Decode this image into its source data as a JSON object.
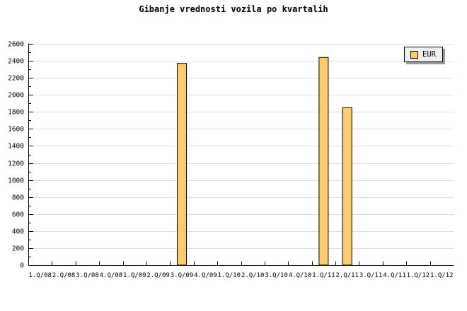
{
  "title": "Gibanje vrednosti vozila po kvartalih",
  "legend": {
    "label": "EUR"
  },
  "colors": {
    "background": "#FFFFFF",
    "bar_fill": "#FFCC66",
    "bar_border": "#000000",
    "grid": "#DDDDDD",
    "axis": "#000000",
    "text": "#000000",
    "legend_bg": "#EFEFEF",
    "legend_shadow": "#999999"
  },
  "chart_data": {
    "type": "bar",
    "title": "Gibanje vrednosti vozila po kvartalih",
    "xlabel": "",
    "ylabel": "",
    "categories": [
      "1.Q/08",
      "2.Q/08",
      "3.Q/08",
      "4.Q/08",
      "1.Q/09",
      "2.Q/09",
      "3.Q/09",
      "4.Q/09",
      "1.Q/10",
      "2.Q/10",
      "3.Q/10",
      "4.Q/10",
      "1.Q/11",
      "2.Q/11",
      "3.Q/11",
      "4.Q/11",
      "1.Q/12",
      "1.Q/12"
    ],
    "series": [
      {
        "name": "EUR",
        "values": [
          null,
          null,
          null,
          null,
          null,
          null,
          2370,
          null,
          null,
          null,
          null,
          null,
          2440,
          1850,
          null,
          null,
          null,
          null
        ]
      }
    ],
    "ylim": [
      0,
      2600
    ],
    "ytick_step": 200,
    "ytick_minor_step": 100,
    "grid": "horizontal-major",
    "legend_position": "top-right"
  }
}
